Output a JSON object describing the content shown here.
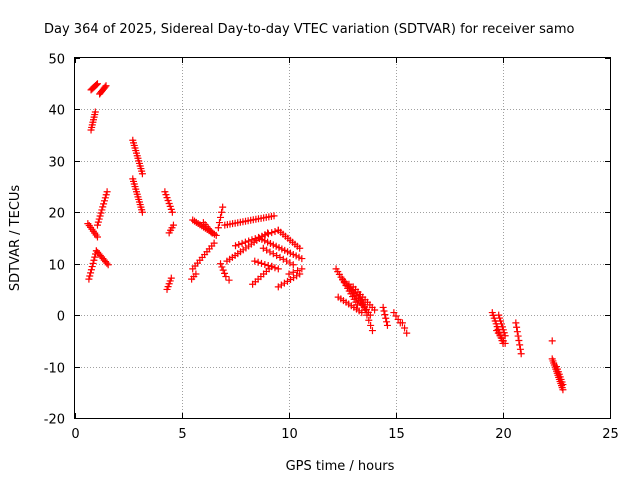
{
  "chart_data": {
    "type": "scatter",
    "title": "Day 364 of 2025, Sidereal Day-to-day VTEC variation (SDTVAR) for receiver samo",
    "xlabel": "GPS time / hours",
    "ylabel": "SDTVAR / TECUs",
    "xlim": [
      0,
      25
    ],
    "ylim": [
      -20,
      50
    ],
    "xticks": [
      0,
      5,
      10,
      15,
      20,
      25
    ],
    "yticks": [
      -20,
      -10,
      0,
      10,
      20,
      30,
      40,
      50
    ],
    "grid": true,
    "marker": "+",
    "color": "#ff0000",
    "segments": [
      {
        "x0": 0.75,
        "y0": 43.8,
        "x1": 1.05,
        "y1": 45.0,
        "n": 8
      },
      {
        "x0": 1.15,
        "y0": 43.0,
        "x1": 1.45,
        "y1": 44.6,
        "n": 8
      },
      {
        "x0": 0.75,
        "y0": 36.0,
        "x1": 0.95,
        "y1": 39.5,
        "n": 8
      },
      {
        "x0": 0.6,
        "y0": 17.8,
        "x1": 1.05,
        "y1": 15.2,
        "n": 8
      },
      {
        "x0": 1.05,
        "y0": 17.5,
        "x1": 1.5,
        "y1": 24.0,
        "n": 12
      },
      {
        "x0": 0.65,
        "y0": 7.0,
        "x1": 1.0,
        "y1": 12.5,
        "n": 10
      },
      {
        "x0": 1.0,
        "y0": 12.5,
        "x1": 1.55,
        "y1": 9.8,
        "n": 10
      },
      {
        "x0": 2.7,
        "y0": 34.0,
        "x1": 3.15,
        "y1": 27.5,
        "n": 14
      },
      {
        "x0": 2.7,
        "y0": 26.5,
        "x1": 3.15,
        "y1": 20.0,
        "n": 14
      },
      {
        "x0": 4.2,
        "y0": 24.0,
        "x1": 4.55,
        "y1": 20.0,
        "n": 8
      },
      {
        "x0": 4.4,
        "y0": 16.0,
        "x1": 4.6,
        "y1": 17.5,
        "n": 4
      },
      {
        "x0": 4.3,
        "y0": 5.0,
        "x1": 4.5,
        "y1": 7.2,
        "n": 5
      },
      {
        "x0": 5.5,
        "y0": 18.5,
        "x1": 6.6,
        "y1": 15.5,
        "n": 14
      },
      {
        "x0": 6.0,
        "y0": 18.0,
        "x1": 6.4,
        "y1": 16.0,
        "n": 6
      },
      {
        "x0": 5.5,
        "y0": 9.0,
        "x1": 6.5,
        "y1": 14.0,
        "n": 10
      },
      {
        "x0": 5.45,
        "y0": 7.0,
        "x1": 5.65,
        "y1": 8.0,
        "n": 3
      },
      {
        "x0": 6.7,
        "y0": 17.0,
        "x1": 6.9,
        "y1": 21.0,
        "n": 5
      },
      {
        "x0": 7.0,
        "y0": 17.5,
        "x1": 9.3,
        "y1": 19.3,
        "n": 20
      },
      {
        "x0": 6.8,
        "y0": 10.0,
        "x1": 7.05,
        "y1": 7.5,
        "n": 5
      },
      {
        "x0": 7.1,
        "y0": 10.5,
        "x1": 9.0,
        "y1": 16.0,
        "n": 16
      },
      {
        "x0": 7.5,
        "y0": 13.5,
        "x1": 9.5,
        "y1": 16.5,
        "n": 14
      },
      {
        "x0": 8.6,
        "y0": 15.0,
        "x1": 10.6,
        "y1": 11.0,
        "n": 16
      },
      {
        "x0": 9.5,
        "y0": 16.5,
        "x1": 10.5,
        "y1": 13.0,
        "n": 10
      },
      {
        "x0": 8.4,
        "y0": 10.5,
        "x1": 9.5,
        "y1": 9.0,
        "n": 8
      },
      {
        "x0": 8.8,
        "y0": 13.0,
        "x1": 10.2,
        "y1": 9.8,
        "n": 10
      },
      {
        "x0": 8.3,
        "y0": 6.0,
        "x1": 9.2,
        "y1": 9.5,
        "n": 8
      },
      {
        "x0": 9.5,
        "y0": 5.5,
        "x1": 10.5,
        "y1": 8.0,
        "n": 8
      },
      {
        "x0": 10.0,
        "y0": 8.0,
        "x1": 10.6,
        "y1": 9.0,
        "n": 4
      },
      {
        "x0": 7.2,
        "y0": 6.8,
        "x1": 7.2,
        "y1": 6.8,
        "n": 1
      },
      {
        "x0": 12.2,
        "y0": 9.0,
        "x1": 13.2,
        "y1": 2.0,
        "n": 14
      },
      {
        "x0": 12.5,
        "y0": 7.0,
        "x1": 13.6,
        "y1": 1.0,
        "n": 14
      },
      {
        "x0": 12.8,
        "y0": 6.0,
        "x1": 13.8,
        "y1": 0.0,
        "n": 12
      },
      {
        "x0": 13.0,
        "y0": 5.5,
        "x1": 14.0,
        "y1": 1.0,
        "n": 10
      },
      {
        "x0": 12.3,
        "y0": 3.5,
        "x1": 13.4,
        "y1": 0.5,
        "n": 10
      },
      {
        "x0": 13.3,
        "y0": 4.0,
        "x1": 13.9,
        "y1": -3.0,
        "n": 8
      },
      {
        "x0": 14.4,
        "y0": 1.5,
        "x1": 14.6,
        "y1": -2.0,
        "n": 6
      },
      {
        "x0": 14.9,
        "y0": 0.5,
        "x1": 15.2,
        "y1": -1.5,
        "n": 4
      },
      {
        "x0": 15.3,
        "y0": -1.5,
        "x1": 15.5,
        "y1": -3.5,
        "n": 3
      },
      {
        "x0": 19.5,
        "y0": 0.5,
        "x1": 20.0,
        "y1": -5.5,
        "n": 12
      },
      {
        "x0": 19.8,
        "y0": 0.0,
        "x1": 20.1,
        "y1": -4.0,
        "n": 8
      },
      {
        "x0": 19.7,
        "y0": -3.0,
        "x1": 20.1,
        "y1": -5.5,
        "n": 6
      },
      {
        "x0": 20.6,
        "y0": -1.5,
        "x1": 20.85,
        "y1": -7.5,
        "n": 8
      },
      {
        "x0": 22.3,
        "y0": -5.0,
        "x1": 22.3,
        "y1": -5.0,
        "n": 1
      },
      {
        "x0": 22.3,
        "y0": -8.5,
        "x1": 22.8,
        "y1": -14.5,
        "n": 16
      },
      {
        "x0": 22.5,
        "y0": -10.0,
        "x1": 22.8,
        "y1": -13.5,
        "n": 8
      }
    ]
  }
}
